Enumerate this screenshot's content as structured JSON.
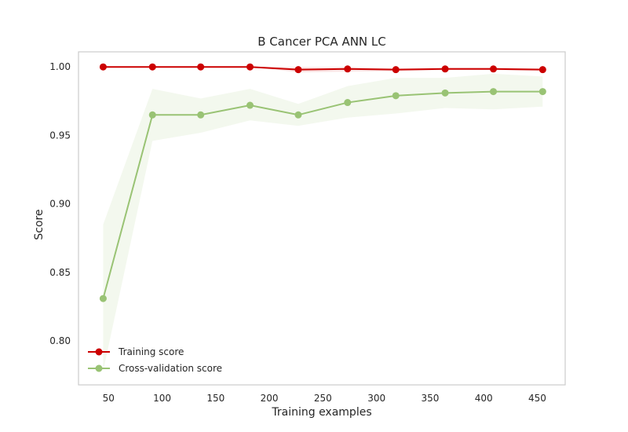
{
  "chart_data": {
    "type": "line",
    "title": "B Cancer PCA ANN LC",
    "xlabel": "Training examples",
    "ylabel": "Score",
    "xlim": [
      22,
      476
    ],
    "ylim": [
      0.768,
      1.011
    ],
    "xticks": [
      50,
      100,
      150,
      200,
      250,
      300,
      350,
      400,
      450
    ],
    "yticks": [
      0.8,
      0.85,
      0.9,
      0.95,
      1.0
    ],
    "xtick_labels": [
      "50",
      "100",
      "150",
      "200",
      "250",
      "300",
      "350",
      "400",
      "450"
    ],
    "ytick_labels": [
      "0.80",
      "0.85",
      "0.90",
      "0.95",
      "1.00"
    ],
    "grid": false,
    "legend": "lower-left",
    "x": [
      45,
      91,
      136,
      182,
      227,
      273,
      318,
      364,
      409,
      455
    ],
    "series": [
      {
        "name": "Training score",
        "color": "#cc0000",
        "values": [
          1.0,
          1.0,
          1.0,
          1.0,
          0.998,
          0.9985,
          0.998,
          0.9985,
          0.9985,
          0.998
        ],
        "band_lower": [
          1.0,
          1.0,
          1.0,
          1.0,
          0.996,
          0.9965,
          0.997,
          0.9975,
          0.9975,
          0.997
        ],
        "band_upper": [
          1.0,
          1.0,
          1.0,
          1.0,
          1.0,
          1.0,
          0.999,
          0.9995,
          0.9995,
          0.999
        ]
      },
      {
        "name": "Cross-validation score",
        "color": "#99c374",
        "values": [
          0.831,
          0.965,
          0.965,
          0.972,
          0.965,
          0.974,
          0.979,
          0.981,
          0.982,
          0.982
        ],
        "band_lower": [
          0.778,
          0.946,
          0.952,
          0.961,
          0.957,
          0.963,
          0.966,
          0.97,
          0.969,
          0.971
        ],
        "band_upper": [
          0.885,
          0.984,
          0.977,
          0.984,
          0.973,
          0.986,
          0.992,
          0.992,
          0.995,
          0.993
        ]
      }
    ]
  }
}
